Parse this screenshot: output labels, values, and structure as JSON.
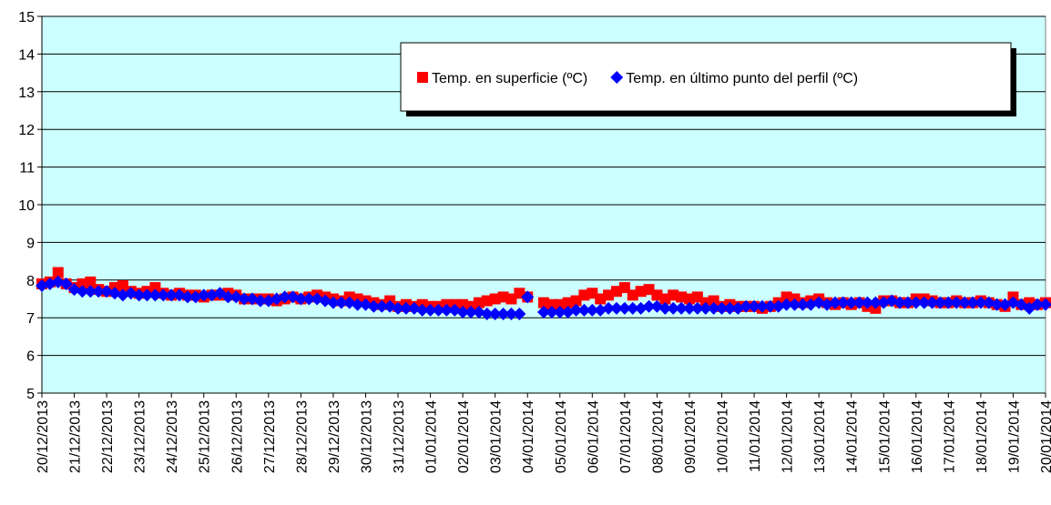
{
  "chart_data": {
    "type": "scatter",
    "categories": [
      "20/12/2013",
      null,
      null,
      null,
      "21/12/2013",
      null,
      null,
      null,
      "22/12/2013",
      null,
      null,
      null,
      "23/12/2013",
      null,
      null,
      null,
      "24/12/2013",
      null,
      null,
      null,
      "25/12/2013",
      null,
      null,
      null,
      "26/12/2013",
      null,
      null,
      null,
      "27/12/2013",
      null,
      null,
      null,
      "28/12/2013",
      null,
      null,
      null,
      "29/12/2013",
      null,
      null,
      null,
      "30/12/2013",
      null,
      null,
      null,
      "31/12/2013",
      null,
      null,
      null,
      "01/01/2014",
      null,
      null,
      null,
      "02/01/2014",
      null,
      null,
      null,
      "03/01/2014",
      null,
      null,
      null,
      "04/01/2014",
      null,
      null,
      null,
      "05/01/2014",
      null,
      null,
      null,
      "06/01/2014",
      null,
      null,
      null,
      "07/01/2014",
      null,
      null,
      null,
      "08/01/2014",
      null,
      null,
      null,
      "09/01/2014",
      null,
      null,
      null,
      "10/01/2014",
      null,
      null,
      null,
      "11/01/2014",
      null,
      null,
      null,
      "12/01/2014",
      null,
      null,
      null,
      "13/01/2014",
      null,
      null,
      null,
      "14/01/2014",
      null,
      null,
      null,
      "15/01/2014",
      null,
      null,
      null,
      "16/01/2014",
      null,
      null,
      null,
      "17/01/2014",
      null,
      null,
      null,
      "18/01/2014",
      null,
      null,
      null,
      "19/01/2014",
      null,
      null,
      null,
      "20/01/2014"
    ],
    "series": [
      {
        "name": "Temp. en superficie (ºC)",
        "color": "#ff0000",
        "marker": "square",
        "values": [
          7.9,
          7.95,
          8.2,
          7.9,
          7.8,
          7.9,
          7.95,
          7.75,
          7.7,
          7.8,
          7.85,
          7.7,
          7.65,
          7.7,
          7.8,
          7.65,
          7.6,
          7.65,
          7.6,
          7.6,
          7.55,
          7.6,
          7.6,
          7.65,
          7.6,
          7.5,
          7.5,
          7.5,
          7.5,
          7.45,
          7.5,
          7.55,
          7.5,
          7.55,
          7.6,
          7.55,
          7.5,
          7.45,
          7.55,
          7.5,
          7.45,
          7.4,
          7.35,
          7.45,
          7.3,
          7.35,
          7.3,
          7.35,
          7.3,
          7.3,
          7.35,
          7.35,
          7.35,
          7.3,
          7.4,
          7.45,
          7.5,
          7.55,
          7.5,
          7.65,
          7.55,
          null,
          7.4,
          7.35,
          7.35,
          7.4,
          7.45,
          7.6,
          7.65,
          7.5,
          7.6,
          7.7,
          7.8,
          7.6,
          7.7,
          7.75,
          7.6,
          7.5,
          7.6,
          7.55,
          7.5,
          7.55,
          7.4,
          7.45,
          7.3,
          7.35,
          7.3,
          7.3,
          7.3,
          7.25,
          7.3,
          7.4,
          7.55,
          7.5,
          7.4,
          7.45,
          7.5,
          7.4,
          7.35,
          7.4,
          7.35,
          7.4,
          7.3,
          7.25,
          7.45,
          7.45,
          7.4,
          7.4,
          7.5,
          7.5,
          7.45,
          7.4,
          7.4,
          7.45,
          7.4,
          7.4,
          7.45,
          7.4,
          7.35,
          7.3,
          7.55,
          7.35,
          7.4,
          7.35,
          7.4
        ]
      },
      {
        "name": "Temp. en último punto del perfil (ºC)",
        "color": "#0000ff",
        "marker": "diamond",
        "values": [
          7.85,
          7.9,
          7.95,
          7.9,
          7.75,
          7.7,
          7.7,
          7.7,
          7.7,
          7.65,
          7.6,
          7.65,
          7.6,
          7.6,
          7.6,
          7.6,
          7.6,
          7.6,
          7.55,
          7.55,
          7.6,
          7.6,
          7.65,
          7.55,
          7.55,
          7.5,
          7.5,
          7.45,
          7.45,
          7.5,
          7.55,
          7.55,
          7.5,
          7.5,
          7.5,
          7.45,
          7.4,
          7.4,
          7.4,
          7.35,
          7.35,
          7.3,
          7.3,
          7.3,
          7.25,
          7.25,
          7.25,
          7.2,
          7.2,
          7.2,
          7.2,
          7.2,
          7.15,
          7.15,
          7.15,
          7.1,
          7.1,
          7.1,
          7.1,
          7.1,
          7.55,
          null,
          7.15,
          7.15,
          7.15,
          7.15,
          7.2,
          7.2,
          7.2,
          7.2,
          7.25,
          7.25,
          7.25,
          7.25,
          7.25,
          7.3,
          7.3,
          7.25,
          7.25,
          7.25,
          7.25,
          7.25,
          7.25,
          7.25,
          7.25,
          7.25,
          7.25,
          7.3,
          7.3,
          7.3,
          7.3,
          7.3,
          7.35,
          7.35,
          7.35,
          7.35,
          7.4,
          7.35,
          7.4,
          7.4,
          7.4,
          7.4,
          7.4,
          7.4,
          7.4,
          7.45,
          7.4,
          7.4,
          7.4,
          7.4,
          7.4,
          7.4,
          7.4,
          7.4,
          7.4,
          7.4,
          7.4,
          7.4,
          7.35,
          7.35,
          7.4,
          7.35,
          7.25,
          7.35,
          7.35
        ]
      }
    ],
    "ylim": [
      5,
      15
    ],
    "yticks": [
      5,
      6,
      7,
      8,
      9,
      10,
      11,
      12,
      13,
      14,
      15
    ],
    "grid": true,
    "legend": "top-right",
    "plot_background": "#ccffff"
  }
}
